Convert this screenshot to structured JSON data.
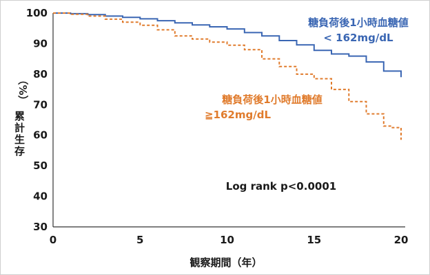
{
  "chart_data": {
    "type": "line",
    "xlabel": "観察期間（年）",
    "ylabel_unit": "（%）",
    "ylabel": "累計生存",
    "xlim": [
      0,
      20
    ],
    "ylim": [
      30,
      100
    ],
    "xticks": [
      0,
      5,
      10,
      15,
      20
    ],
    "yticks": [
      30,
      40,
      50,
      60,
      70,
      80,
      90,
      100
    ],
    "x_tick_labels": [
      "0",
      "5",
      "10",
      "15",
      "20"
    ],
    "y_tick_labels": [
      "30",
      "40",
      "50",
      "60",
      "70",
      "80",
      "90",
      "100"
    ],
    "grid": false,
    "annotation": "Log rank p<0.0001",
    "series": [
      {
        "name_line1": "糖負荷後1小時血糖値",
        "name_line2": "< 162mg/dL",
        "color": "#3a66b3",
        "style": "solid",
        "x": [
          0,
          1,
          2,
          3,
          4,
          5,
          6,
          7,
          8,
          9,
          10,
          11,
          12,
          13,
          14,
          15,
          16,
          17,
          18,
          19,
          20
        ],
        "y": [
          100,
          99.8,
          99.5,
          99,
          98.6,
          98.1,
          97.5,
          96.8,
          96.1,
          95.5,
          94.8,
          93.6,
          92.5,
          91,
          89.6,
          87.8,
          86.6,
          85.9,
          84,
          81,
          79
        ]
      },
      {
        "name_line1": "糖負荷後1小時血糖値",
        "name_line2": "≧162mg/dL",
        "color": "#e07b2c",
        "style": "dashed",
        "x": [
          0,
          1,
          2,
          3,
          4,
          5,
          6,
          7,
          8,
          9,
          10,
          11,
          12,
          13,
          14,
          15,
          16,
          17,
          18,
          19,
          19.5,
          20
        ],
        "y": [
          100,
          99.6,
          99,
          98,
          97,
          96,
          94.5,
          92.5,
          91.5,
          90.5,
          89.5,
          88,
          85,
          82.5,
          80,
          78.5,
          75,
          71,
          67,
          63,
          62.5,
          58.5
        ]
      }
    ]
  }
}
